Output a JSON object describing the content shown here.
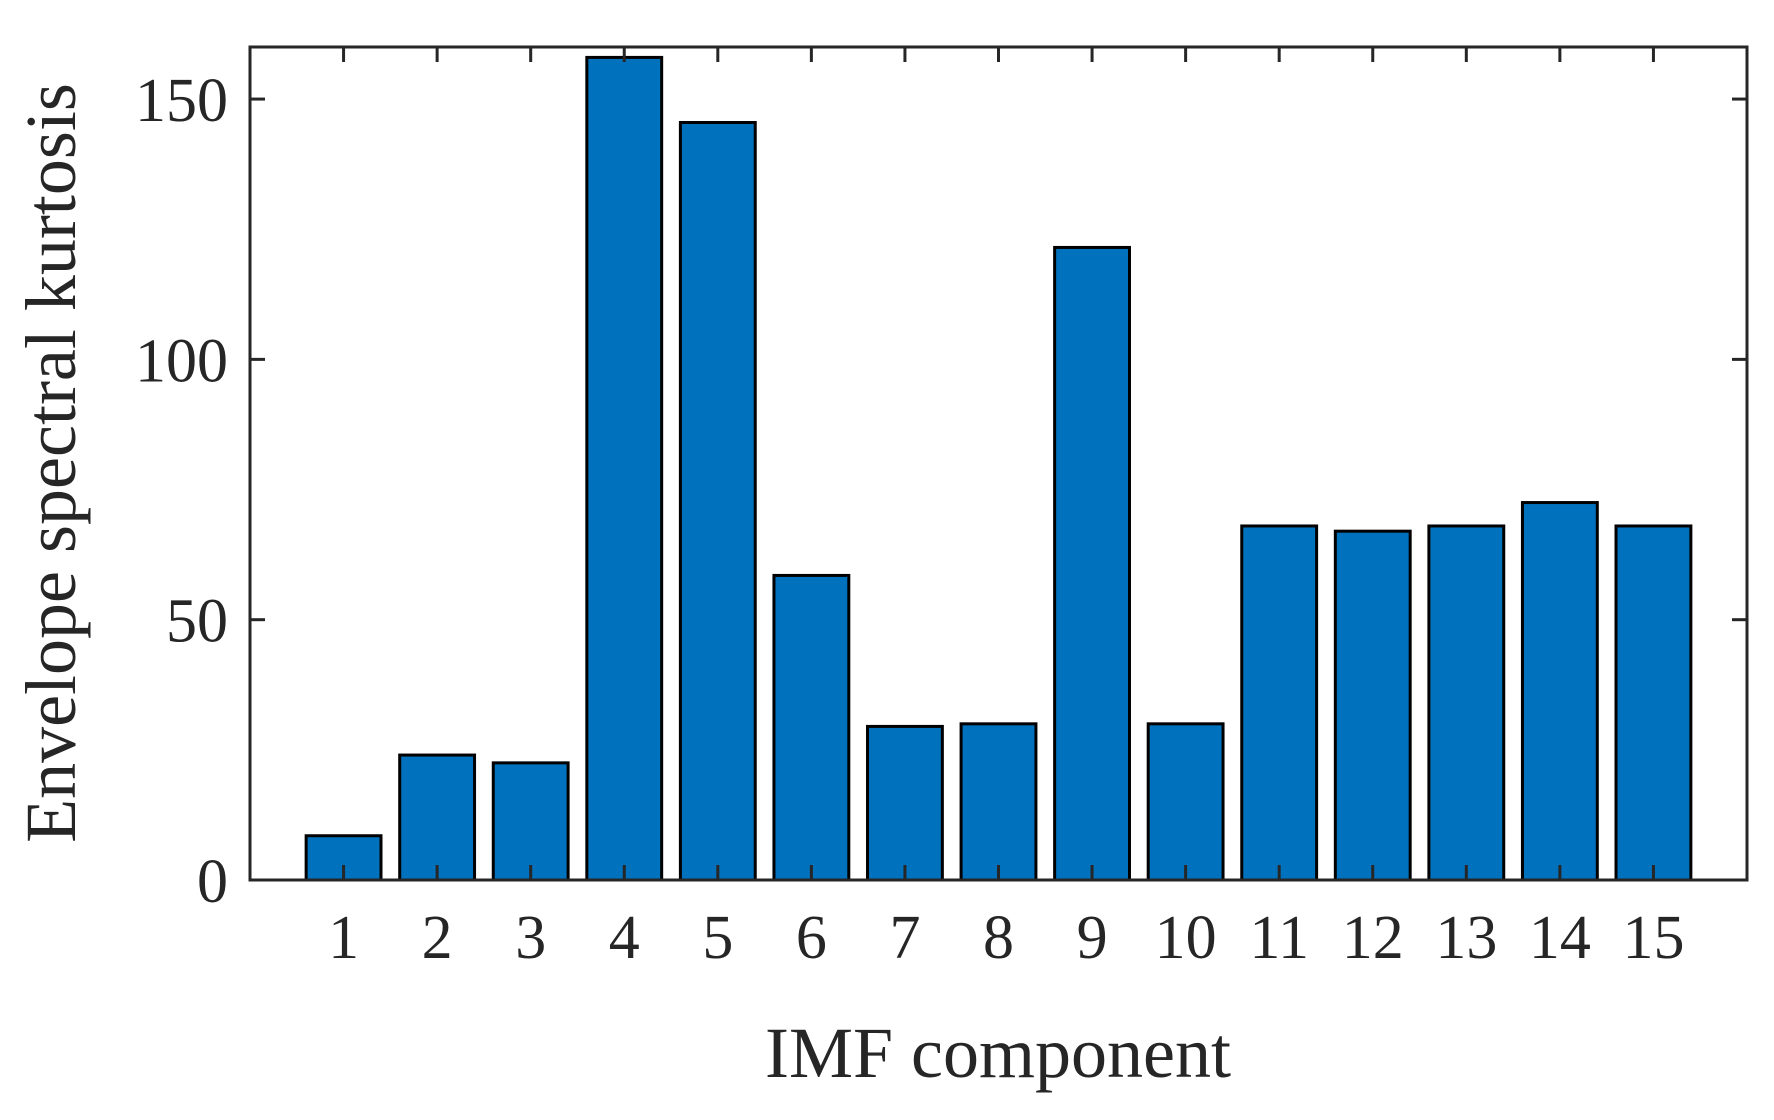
{
  "chart_data": {
    "type": "bar",
    "categories": [
      "1",
      "2",
      "3",
      "4",
      "5",
      "6",
      "7",
      "8",
      "9",
      "10",
      "11",
      "12",
      "13",
      "14",
      "15"
    ],
    "series": [
      {
        "values": [
          8.5,
          24,
          22.5,
          158,
          145.5,
          58.5,
          29.5,
          30,
          121.5,
          30,
          68,
          67,
          68,
          72.5,
          68
        ]
      }
    ],
    "xlabel": "IMF component",
    "ylabel": "Envelope spectral kurtosis",
    "ylim": [
      0,
      160
    ],
    "xlim": [
      0,
      16
    ],
    "yticks": [
      0,
      50,
      100,
      150
    ],
    "ytick_labels": [
      "0",
      "50",
      "100",
      "150"
    ],
    "grid": false,
    "legend": "none",
    "colors": {
      "bar": "#0072BD",
      "edge": "#000000",
      "axis": "#262626"
    }
  }
}
